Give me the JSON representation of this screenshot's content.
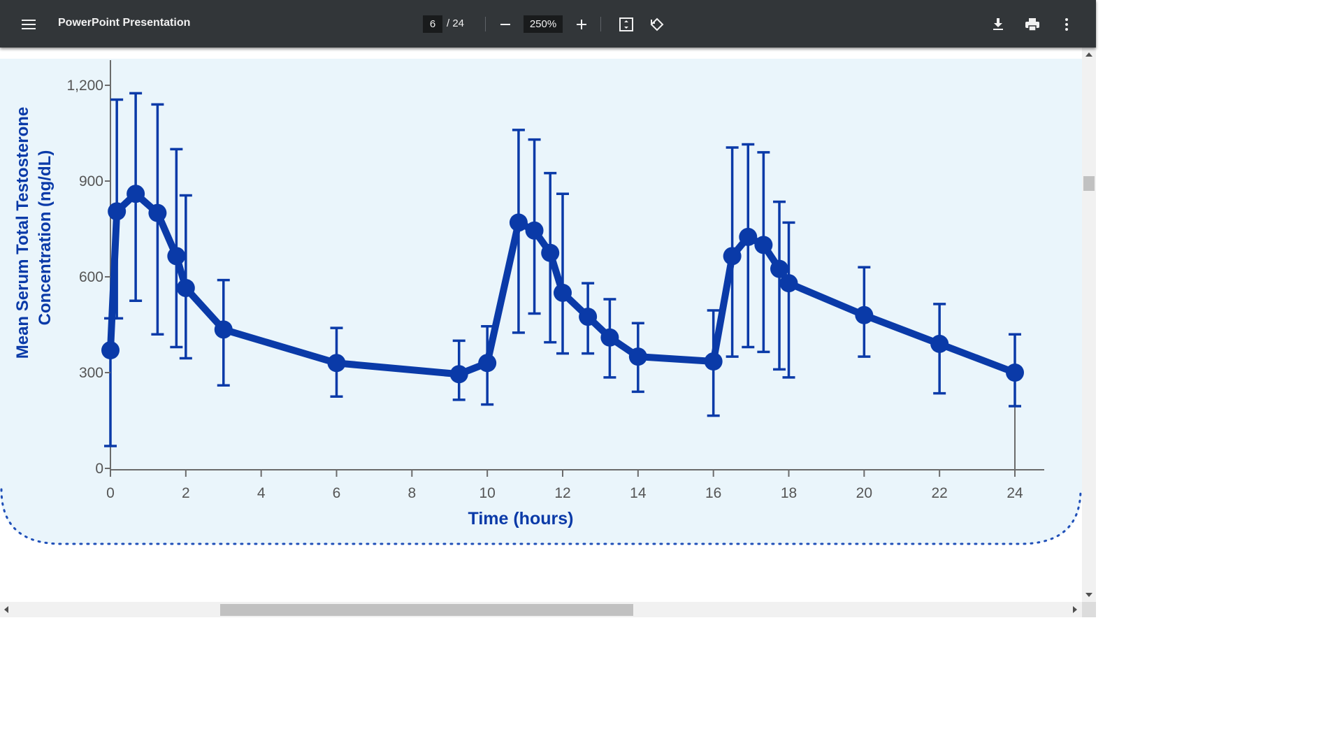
{
  "toolbar": {
    "menu_icon": "hamburger-menu-icon",
    "title": "PowerPoint Presentation",
    "current_page": "6",
    "page_total": "/ 24",
    "zoom_out_icon": "minus-icon",
    "zoom_level": "250%",
    "zoom_in_icon": "plus-icon",
    "fit_page_icon": "fit-to-page-icon",
    "rotate_icon": "rotate-counterclockwise-icon",
    "download_icon": "download-icon",
    "print_icon": "print-icon",
    "more_icon": "more-vertical-icon"
  },
  "colors": {
    "toolbar_bg": "#323639",
    "chart_bg": "#eaf5fb",
    "series": "#0a3aa8"
  },
  "chart_data": {
    "type": "line",
    "xlabel": "Time (hours)",
    "ylabel_line1": "Mean Serum Total Testosterone",
    "ylabel_line2": "Concentration (ng/dL)",
    "xlim": [
      0,
      24
    ],
    "ylim": [
      0,
      1200
    ],
    "x_ticks": [
      "0",
      "2",
      "4",
      "6",
      "8",
      "10",
      "12",
      "14",
      "16",
      "18",
      "20",
      "22",
      "24"
    ],
    "y_ticks": [
      "0",
      "300",
      "600",
      "900",
      "1,200"
    ],
    "error_bars": true,
    "series": [
      {
        "points": [
          {
            "x": 0,
            "y": 370,
            "lo": 70,
            "hi": 470
          },
          {
            "x": 0.17,
            "y": 805,
            "lo": 470,
            "hi": 1155
          },
          {
            "x": 0.67,
            "y": 860,
            "lo": 525,
            "hi": 1175
          },
          {
            "x": 1.25,
            "y": 800,
            "lo": 420,
            "hi": 1140
          },
          {
            "x": 1.75,
            "y": 665,
            "lo": 380,
            "hi": 1000
          },
          {
            "x": 2.0,
            "y": 565,
            "lo": 345,
            "hi": 855
          },
          {
            "x": 3.0,
            "y": 435,
            "lo": 260,
            "hi": 590
          },
          {
            "x": 6.0,
            "y": 330,
            "lo": 225,
            "hi": 440
          },
          {
            "x": 9.25,
            "y": 295,
            "lo": 215,
            "hi": 400
          },
          {
            "x": 10.0,
            "y": 330,
            "lo": 200,
            "hi": 445
          },
          {
            "x": 10.83,
            "y": 770,
            "lo": 425,
            "hi": 1060
          },
          {
            "x": 11.25,
            "y": 745,
            "lo": 485,
            "hi": 1030
          },
          {
            "x": 11.67,
            "y": 675,
            "lo": 395,
            "hi": 925
          },
          {
            "x": 12.0,
            "y": 550,
            "lo": 360,
            "hi": 860
          },
          {
            "x": 12.67,
            "y": 475,
            "lo": 360,
            "hi": 580
          },
          {
            "x": 13.25,
            "y": 410,
            "lo": 285,
            "hi": 530
          },
          {
            "x": 14.0,
            "y": 350,
            "lo": 240,
            "hi": 455
          },
          {
            "x": 16.0,
            "y": 335,
            "lo": 165,
            "hi": 495
          },
          {
            "x": 16.5,
            "y": 665,
            "lo": 350,
            "hi": 1005
          },
          {
            "x": 16.92,
            "y": 725,
            "lo": 380,
            "hi": 1015
          },
          {
            "x": 17.33,
            "y": 700,
            "lo": 365,
            "hi": 990
          },
          {
            "x": 17.75,
            "y": 625,
            "lo": 310,
            "hi": 835
          },
          {
            "x": 18.0,
            "y": 580,
            "lo": 285,
            "hi": 770
          },
          {
            "x": 20.0,
            "y": 480,
            "lo": 350,
            "hi": 630
          },
          {
            "x": 22.0,
            "y": 390,
            "lo": 235,
            "hi": 515
          },
          {
            "x": 24.0,
            "y": 300,
            "lo": 195,
            "hi": 420
          }
        ]
      }
    ]
  }
}
